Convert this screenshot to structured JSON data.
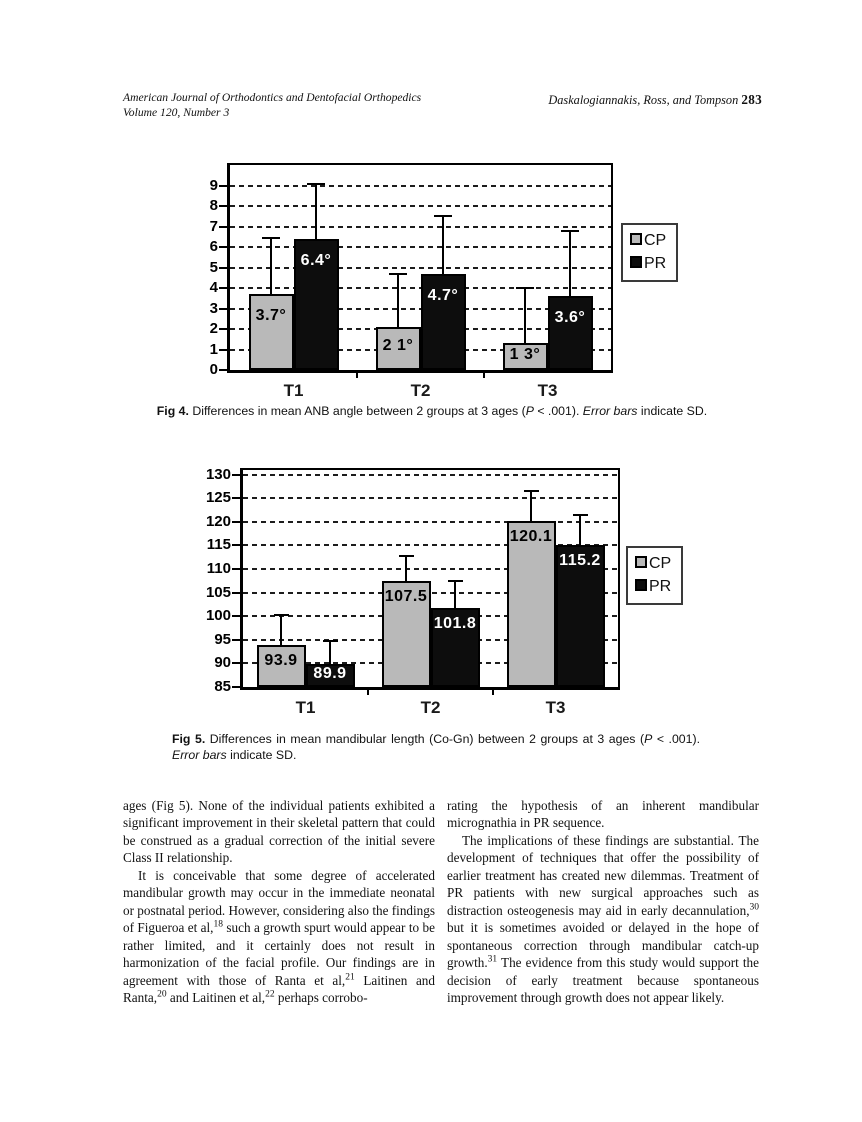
{
  "header": {
    "journal_line1": "American Journal of Orthodontics and Dentofacial Orthopedics",
    "journal_line2": "Volume 120, Number 3",
    "running_authors": "Daskalogiannakis, Ross, and Tompson",
    "page_number": "283"
  },
  "colors": {
    "cp_fill": "#b9b9b9",
    "pr_fill": "#0d0d0d",
    "ink": "#000000"
  },
  "chart_data": [
    {
      "type": "bar",
      "title": "",
      "xlabel": "",
      "ylabel": "",
      "categories": [
        "T1",
        "T2",
        "T3"
      ],
      "series": [
        {
          "name": "CP",
          "values": [
            3.7,
            2.1,
            1.3
          ],
          "labels": [
            "3.7°",
            "2 1°",
            "1 3°"
          ],
          "error_bar_tops": [
            6.45,
            4.7,
            4.0
          ],
          "color": "#b9b9b9",
          "label_color": "#000000"
        },
        {
          "name": "PR",
          "values": [
            6.4,
            4.7,
            3.6
          ],
          "labels": [
            "6.4°",
            "4.7°",
            "3.6°"
          ],
          "error_bar_tops": [
            9.05,
            7.5,
            6.8
          ],
          "color": "#0d0d0d",
          "label_color": "#ffffff"
        }
      ],
      "ylim": [
        0,
        10
      ],
      "yticks": [
        0,
        1,
        2,
        3,
        4,
        5,
        6,
        7,
        8,
        9
      ],
      "grid": true,
      "legend": [
        "CP",
        "PR"
      ],
      "legend_position": "right",
      "error_bars": "one-sided up, indicate SD"
    },
    {
      "type": "bar",
      "title": "",
      "xlabel": "",
      "ylabel": "",
      "categories": [
        "T1",
        "T2",
        "T3"
      ],
      "series": [
        {
          "name": "CP",
          "values": [
            93.9,
            107.5,
            120.1
          ],
          "labels": [
            "93.9",
            "107.5",
            "120.1"
          ],
          "error_bar_tops": [
            100.2,
            112.8,
            126.6
          ],
          "color": "#b9b9b9",
          "label_color": "#000000"
        },
        {
          "name": "PR",
          "values": [
            89.9,
            101.8,
            115.2
          ],
          "labels": [
            "89.9",
            "101.8",
            "115.2"
          ],
          "error_bar_tops": [
            94.7,
            107.5,
            121.5
          ],
          "color": "#0d0d0d",
          "label_color": "#ffffff"
        }
      ],
      "ylim": [
        85,
        131
      ],
      "yticks": [
        85,
        90,
        95,
        100,
        105,
        110,
        115,
        120,
        125,
        130
      ],
      "grid": true,
      "legend": [
        "CP",
        "PR"
      ],
      "legend_position": "right",
      "error_bars": "one-sided up, indicate SD"
    }
  ],
  "captions": {
    "fig4_runs": [
      {
        "b": "Fig 4."
      },
      {
        "t": " Differences in mean ANB angle between 2 groups at 3 ages ("
      },
      {
        "i": "P"
      },
      {
        "t": " < .001). "
      },
      {
        "i": "Error bars"
      },
      {
        "t": " indicate SD."
      }
    ],
    "fig5_runs": [
      {
        "b": "Fig 5."
      },
      {
        "t": " Differences in mean mandibular length (Co-Gn) between 2 groups at 3 ages ("
      },
      {
        "i": "P"
      },
      {
        "t": " < .001). "
      },
      {
        "i": "Error bars"
      },
      {
        "t": " indicate SD."
      }
    ]
  },
  "body": {
    "left_column": {
      "paragraphs": [
        {
          "indent": false,
          "runs": [
            {
              "t": "ages (Fig 5). None of the individual patients exhibited a significant improvement in their skeletal pattern that could be construed as a gradual correction of the initial severe Class II relationship."
            }
          ]
        },
        {
          "indent": true,
          "runs": [
            {
              "t": "It is conceivable that some degree of accelerated mandibular growth may occur in the immediate neonatal or postnatal period. However, considering also the findings of Figueroa et al,"
            },
            {
              "sup": "18"
            },
            {
              "t": " such a growth spurt would appear to be rather limited, and it certainly does not result in harmonization of the facial profile. Our findings are in agreement with those of Ranta et al,"
            },
            {
              "sup": "21"
            },
            {
              "t": " Laitinen and Ranta,"
            },
            {
              "sup": "20"
            },
            {
              "t": " and Laitinen et al,"
            },
            {
              "sup": "22"
            },
            {
              "t": " perhaps corrobo-"
            }
          ]
        }
      ]
    },
    "right_column": {
      "paragraphs": [
        {
          "indent": false,
          "runs": [
            {
              "t": "rating the hypothesis of an inherent mandibular micrognathia in PR sequence."
            }
          ]
        },
        {
          "indent": true,
          "runs": [
            {
              "t": "The implications of these findings are substantial. The development of techniques that offer the possibility of earlier treatment has created new dilemmas. Treatment of PR patients with new surgical approaches such as distraction osteogenesis may aid in early decannulation,"
            },
            {
              "sup": "30"
            },
            {
              "t": " but it is sometimes avoided or delayed in the hope of spontaneous correction through mandibular catch-up growth."
            },
            {
              "sup": "31"
            },
            {
              "t": " The evidence from this study would support the decision of early treatment because spontaneous improvement through growth does not appear likely."
            }
          ]
        }
      ]
    }
  }
}
